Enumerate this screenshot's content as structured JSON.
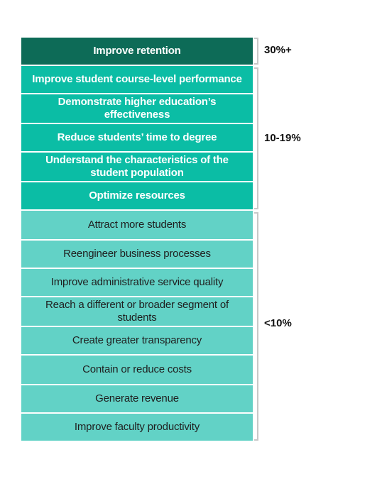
{
  "tiers": [
    {
      "label": "30%+",
      "items": [
        "Improve retention"
      ]
    },
    {
      "label": "10-19%",
      "items": [
        "Improve student course-level performance",
        "Demonstrate higher education’s effectiveness",
        "Reduce students’ time to degree",
        "Understand the characteristics of the student population",
        "Optimize resources"
      ]
    },
    {
      "label": "<10%",
      "items": [
        "Attract more students",
        "Reengineer business processes",
        "Improve administrative service quality",
        "Reach a different or broader segment of students",
        "Create greater transparency",
        "Contain or reduce costs",
        "Generate revenue",
        "Improve faculty productivity"
      ]
    }
  ],
  "colors": {
    "tier_top": "#0d6b57",
    "tier_mid": "#0bbda5",
    "tier_low": "#62d2c6",
    "bracket": "#c8c8c8"
  }
}
